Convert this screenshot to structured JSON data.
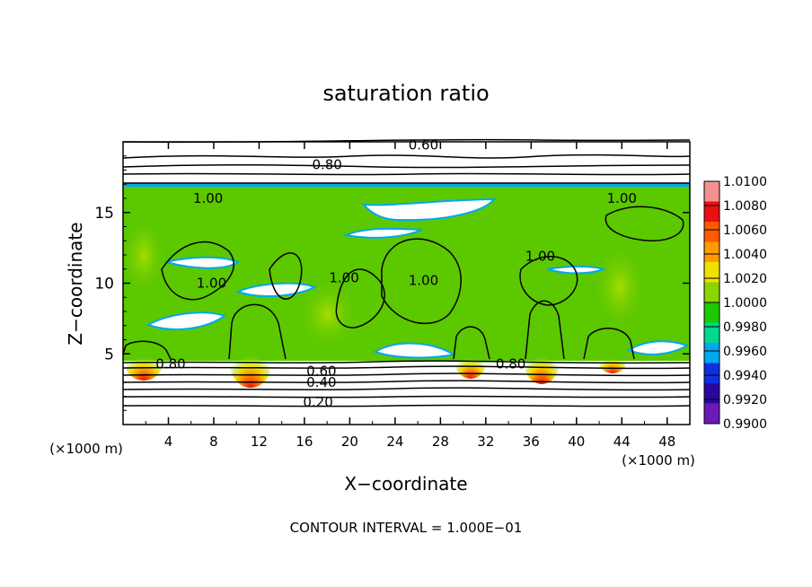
{
  "chart_data": {
    "type": "heatmap",
    "title": "saturation ratio",
    "xlabel": "X−coordinate",
    "ylabel": "Z−coordinate",
    "x_unit": "(×1000 m)",
    "z_unit": "(×1000 m)",
    "xlim": [
      0,
      50
    ],
    "ylim": [
      0,
      20
    ],
    "x_ticks": [
      4,
      8,
      12,
      16,
      20,
      24,
      28,
      32,
      36,
      40,
      44,
      48
    ],
    "y_ticks": [
      5,
      10,
      15
    ],
    "colorbar": {
      "levels": [
        "1.0100",
        "1.0080",
        "1.0060",
        "1.0040",
        "1.0020",
        "1.0000",
        "0.9980",
        "0.9960",
        "0.9940",
        "0.9920",
        "0.9900"
      ],
      "colors": [
        "#f49090",
        "#e81010",
        "#ff5a00",
        "#ff9a00",
        "#f0e000",
        "#8cd400",
        "#1ec800",
        "#00d890",
        "#00a8f0",
        "#1030e0",
        "#2a08a0",
        "#6a1ab8"
      ]
    },
    "contour_labels": [
      {
        "text": "0.60",
        "x": 26.5,
        "z": 19.6
      },
      {
        "text": "0.80",
        "x": 18.0,
        "z": 18.2
      },
      {
        "text": "1.00",
        "x": 7.5,
        "z": 15.8
      },
      {
        "text": "1.00",
        "x": 44.0,
        "z": 15.8
      },
      {
        "text": "1.00",
        "x": 7.8,
        "z": 9.8
      },
      {
        "text": "1.00",
        "x": 19.5,
        "z": 10.2
      },
      {
        "text": "1.00",
        "x": 26.5,
        "z": 10.0
      },
      {
        "text": "1.00",
        "x": 36.8,
        "z": 11.7
      },
      {
        "text": "0.80",
        "x": 4.2,
        "z": 4.1
      },
      {
        "text": "0.80",
        "x": 34.2,
        "z": 4.1
      },
      {
        "text": "0.60",
        "x": 17.5,
        "z": 3.6
      },
      {
        "text": "0.40",
        "x": 17.5,
        "z": 2.8
      },
      {
        "text": "0.20",
        "x": 17.2,
        "z": 1.4
      }
    ],
    "footnote": "CONTOUR INTERVAL = 1.000E−01"
  }
}
